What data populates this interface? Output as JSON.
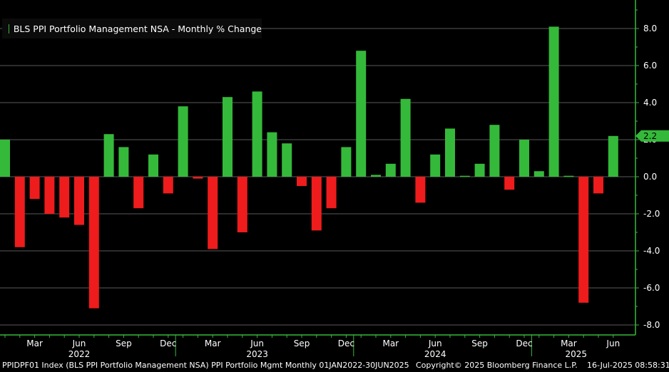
{
  "legend": {
    "label": "BLS PPI Portfolio Management NSA - Monthly % Change",
    "color": "#35b93a"
  },
  "footer": {
    "index_info": "PPIDPF01 Index (BLS PPI Portfolio Management NSA) PPI Portfolio Mgmt  Monthly 01JAN2022-30JUN2025",
    "copyright": "Copyright© 2025 Bloomberg Finance L.P.",
    "timestamp": "16-Jul-2025 08:58:31"
  },
  "colors": {
    "positive": "#35b93a",
    "negative": "#ee1c1c",
    "axis": "#35b93a",
    "grid": "#5a5a5a",
    "background": "#000000"
  },
  "chart_data": {
    "type": "bar",
    "title": "BLS PPI Portfolio Management NSA - Monthly % Change",
    "ylim": [
      -8.5,
      9.5
    ],
    "yticks": [
      8.0,
      6.0,
      4.0,
      2.0,
      0.0,
      -2.0,
      -4.0,
      -6.0,
      -8.0
    ],
    "ytick_labels": [
      "8.0",
      "6.0",
      "4.0",
      "2.0",
      "0.0",
      "-2.0",
      "-4.0",
      "-6.0",
      "-8.0"
    ],
    "last_value_label": "2.2",
    "grid": true,
    "legend_position": "top-left",
    "categories": [
      "2022-01",
      "2022-02",
      "2022-03",
      "2022-04",
      "2022-05",
      "2022-06",
      "2022-07",
      "2022-08",
      "2022-09",
      "2022-10",
      "2022-11",
      "2022-12",
      "2023-01",
      "2023-02",
      "2023-03",
      "2023-04",
      "2023-05",
      "2023-06",
      "2023-07",
      "2023-08",
      "2023-09",
      "2023-10",
      "2023-11",
      "2023-12",
      "2024-01",
      "2024-02",
      "2024-03",
      "2024-04",
      "2024-05",
      "2024-06",
      "2024-07",
      "2024-08",
      "2024-09",
      "2024-10",
      "2024-11",
      "2024-12",
      "2025-01",
      "2025-02",
      "2025-03",
      "2025-04",
      "2025-05",
      "2025-06"
    ],
    "values": [
      2.0,
      -3.8,
      -1.2,
      -2.0,
      -2.2,
      -2.6,
      -7.1,
      2.3,
      1.6,
      -1.7,
      1.2,
      -0.9,
      3.8,
      -0.1,
      -3.9,
      4.3,
      -3.0,
      4.6,
      2.4,
      1.8,
      -0.5,
      -2.9,
      -1.7,
      1.6,
      6.8,
      0.1,
      0.7,
      4.2,
      -1.4,
      1.2,
      2.6,
      0.05,
      0.7,
      2.8,
      -0.7,
      2.0,
      0.3,
      8.1,
      0.05,
      -6.8,
      -0.9,
      2.2
    ],
    "month_labels": [
      {
        "index": 2,
        "label": "Mar"
      },
      {
        "index": 5,
        "label": "Jun"
      },
      {
        "index": 8,
        "label": "Sep"
      },
      {
        "index": 11,
        "label": "Dec"
      },
      {
        "index": 14,
        "label": "Mar"
      },
      {
        "index": 17,
        "label": "Jun"
      },
      {
        "index": 20,
        "label": "Sep"
      },
      {
        "index": 23,
        "label": "Dec"
      },
      {
        "index": 26,
        "label": "Mar"
      },
      {
        "index": 29,
        "label": "Jun"
      },
      {
        "index": 32,
        "label": "Sep"
      },
      {
        "index": 35,
        "label": "Dec"
      },
      {
        "index": 38,
        "label": "Mar"
      },
      {
        "index": 41,
        "label": "Jun"
      }
    ],
    "year_labels": [
      {
        "index": 5,
        "label": "2022"
      },
      {
        "index": 17,
        "label": "2023"
      },
      {
        "index": 29,
        "label": "2024"
      },
      {
        "index": 38.5,
        "label": "2025"
      }
    ]
  }
}
